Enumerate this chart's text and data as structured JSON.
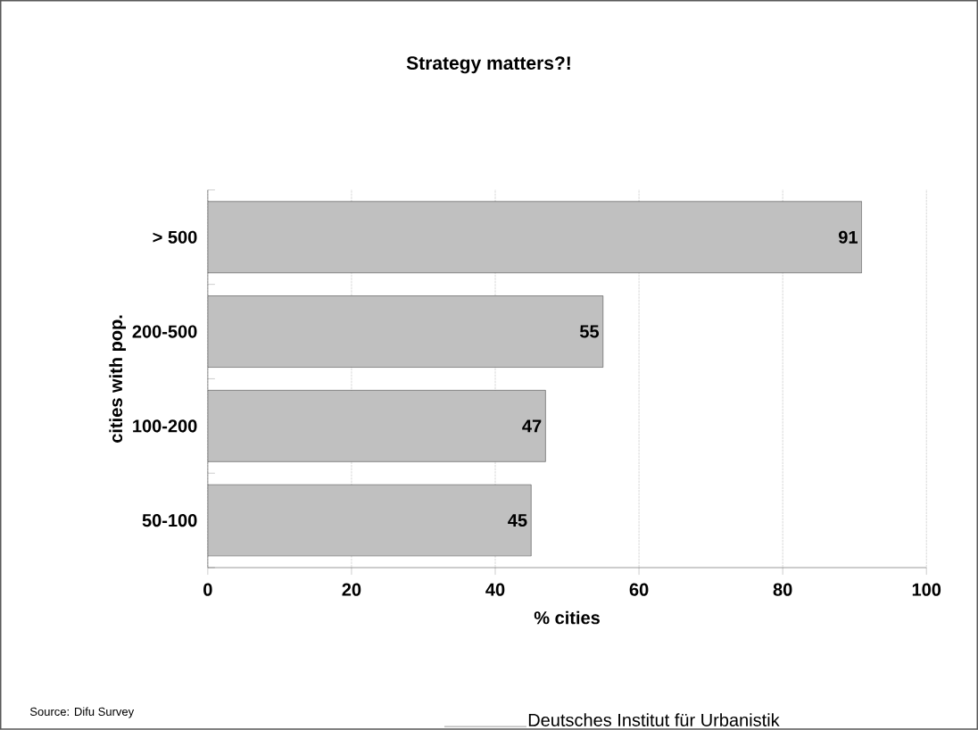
{
  "chart_data": {
    "type": "bar",
    "orientation": "horizontal",
    "title": "Strategy matters?!",
    "categories": [
      "> 500",
      "200-500",
      "100-200",
      "50-100"
    ],
    "values": [
      91,
      55,
      47,
      45
    ],
    "color": "#c0c0c0",
    "xlabel": "% cities",
    "ylabel": "cities with pop.",
    "xlim": [
      0,
      100
    ],
    "xticks": [
      0,
      20,
      40,
      60,
      80,
      100
    ],
    "grid": "x",
    "data_labels": true,
    "annotations": [
      "Source: Difu Survey",
      "Deutsches Institut für Urbanistik"
    ]
  }
}
